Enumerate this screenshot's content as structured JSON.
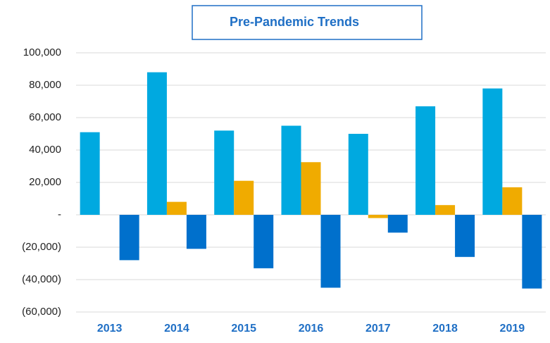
{
  "chart_data": {
    "type": "bar",
    "title": "Pre-Pandemic Trends",
    "categories": [
      "2013",
      "2014",
      "2015",
      "2016",
      "2017",
      "2018",
      "2019"
    ],
    "series": [
      {
        "color": "#00a9e0",
        "values": [
          51000,
          88000,
          52000,
          55000,
          50000,
          67000,
          78000
        ]
      },
      {
        "color": "#f0ab00",
        "values": [
          0,
          8000,
          21000,
          32500,
          -2000,
          6000,
          17000
        ]
      },
      {
        "color": "#0070cc",
        "values": [
          -28000,
          -21000,
          -33000,
          -45000,
          -11000,
          -26000,
          -45500
        ]
      }
    ],
    "ylim": [
      -60000,
      100000
    ],
    "yticks": [
      {
        "value": 100000,
        "label": "100,000"
      },
      {
        "value": 80000,
        "label": "80,000"
      },
      {
        "value": 60000,
        "label": "60,000"
      },
      {
        "value": 40000,
        "label": "40,000"
      },
      {
        "value": 20000,
        "label": "20,000"
      },
      {
        "value": 0,
        "label": "-"
      },
      {
        "value": -20000,
        "label": "(20,000)"
      },
      {
        "value": -40000,
        "label": "(40,000)"
      },
      {
        "value": -60000,
        "label": "(60,000)"
      }
    ],
    "grid": true
  }
}
